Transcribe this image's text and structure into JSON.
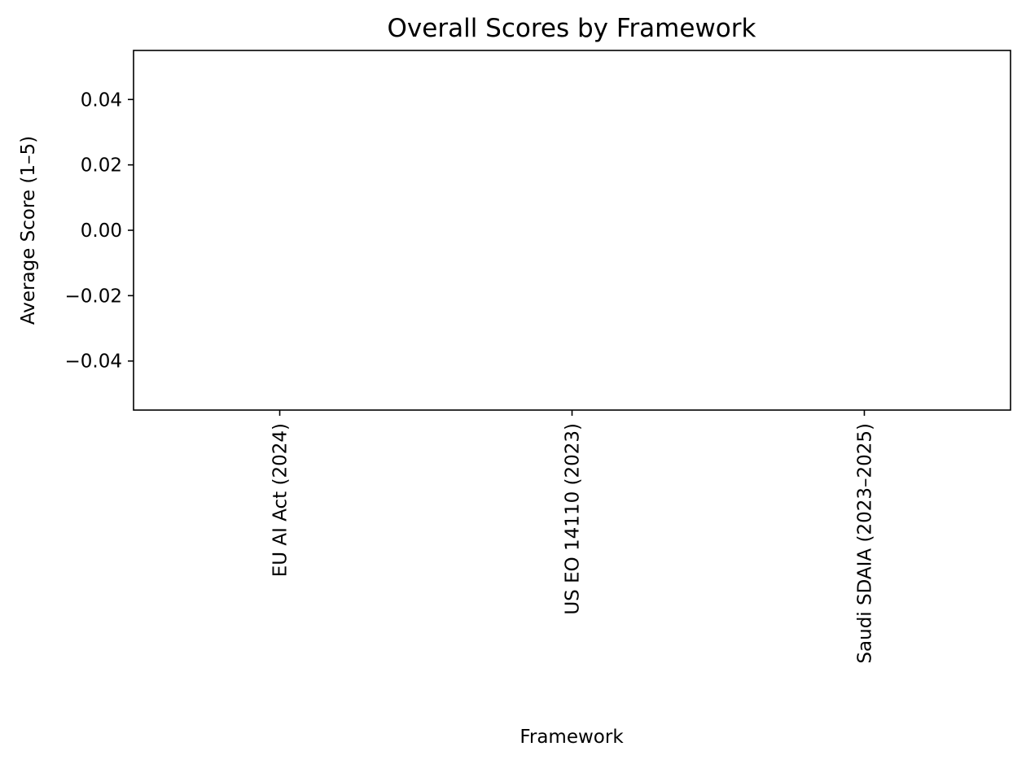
{
  "chart_data": {
    "type": "bar",
    "title": "Overall Scores by Framework",
    "xlabel": "Framework",
    "ylabel": "Average Score (1–5)",
    "categories": [
      "EU AI Act (2024)",
      "US EO 14110 (2023)",
      "Saudi SDAIA (2023–2025)"
    ],
    "values": [
      null,
      null,
      null
    ],
    "ylim": [
      -0.055,
      0.055
    ],
    "yticks": [
      0.04,
      0.02,
      0.0,
      -0.02,
      -0.04
    ],
    "ytick_labels": [
      "0.04",
      "0.02",
      "0.00",
      "−0.02",
      "−0.04"
    ],
    "grid": false,
    "legend": "none"
  }
}
